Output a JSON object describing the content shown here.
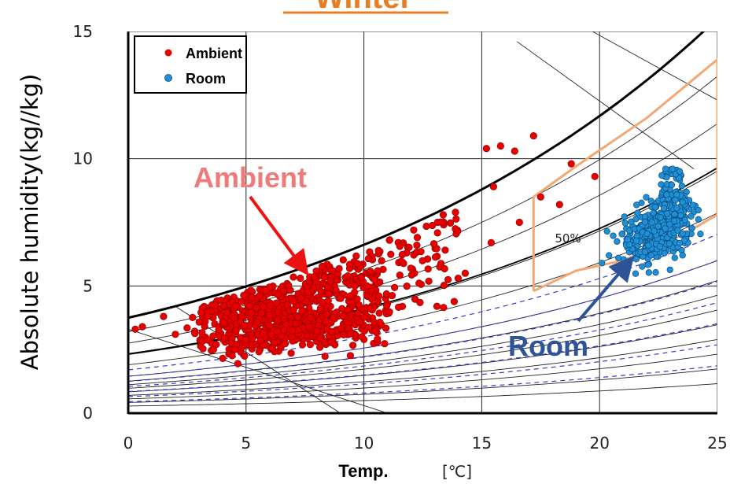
{
  "chart_data": {
    "type": "scatter",
    "title": "Winter",
    "xlabel": "Temp.",
    "xunit": "[℃]",
    "ylabel": "Absolute humidity(kg//kg)",
    "xlim": [
      0,
      25
    ],
    "ylim": [
      0,
      15
    ],
    "xticks": [
      0,
      5,
      10,
      15,
      20,
      25
    ],
    "yticks": [
      0,
      5,
      10,
      15
    ],
    "grid": true,
    "legend_position": "top-left",
    "series": [
      {
        "name": "Ambient",
        "color": "#e60000",
        "approx_center": [
          7,
          3.8
        ],
        "spread": [
          3.5,
          0.9
        ]
      },
      {
        "name": "Room",
        "color": "#1f8fd6",
        "approx_center": [
          22.5,
          7.2
        ],
        "spread": [
          0.9,
          0.8
        ]
      }
    ],
    "annotations": [
      {
        "text": "Ambient",
        "color": "#f07a7a",
        "arrow_to": [
          7.5,
          5.6
        ]
      },
      {
        "text": "Room",
        "color": "#2c5496",
        "arrow_to": [
          21.3,
          6.0
        ]
      },
      {
        "text": "50%"
      }
    ],
    "comfort_zone": {
      "color": "#f4a774",
      "polygon": [
        [
          17.2,
          4.8
        ],
        [
          17.2,
          8.5
        ],
        [
          19,
          9.7
        ],
        [
          22,
          11.6
        ],
        [
          25,
          13.9
        ],
        [
          25,
          7.8
        ],
        [
          23.5,
          7
        ],
        [
          21,
          6
        ],
        [
          19,
          5.6
        ],
        [
          17.2,
          4.8
        ]
      ]
    }
  }
}
